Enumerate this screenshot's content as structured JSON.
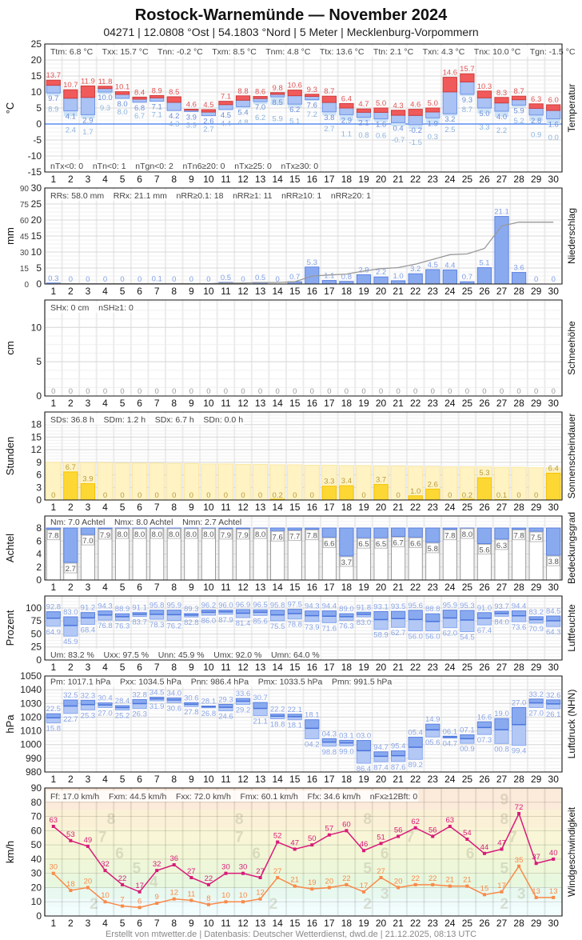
{
  "header": {
    "title": "Rostock-Warnemünde  —  November 2024",
    "subtitle": "04271  |  12.0808 °Ost  |  54.1803 °Nord  |  5 Meter  |  Mecklenburg-Vorpommern"
  },
  "footer": "Erstellt von mtwetter.de | Datenbasis: Deutscher Wetterdienst, dwd.de | 21.12.2025, 08:13 UTC",
  "days": [
    1,
    2,
    3,
    4,
    5,
    6,
    7,
    8,
    9,
    10,
    11,
    12,
    13,
    14,
    15,
    16,
    17,
    18,
    19,
    20,
    21,
    22,
    23,
    24,
    25,
    26,
    27,
    28,
    29,
    30
  ],
  "colors": {
    "tx": "#f05a5a",
    "tn": "#8aaaf0",
    "tg": "#cfe3f7",
    "bar": "#8aaaf0",
    "bar_border": "#5b82e0",
    "sun": "#fdd835",
    "sun_bg": "#fff3c4",
    "gust": "#d81b7a",
    "mean_wind": "#f98a4a"
  },
  "chart_data": [
    {
      "id": "temperature",
      "type": "bar",
      "title": "Temperatur",
      "ylabel": "°C",
      "ylim": [
        -15,
        25
      ],
      "yticks": [
        25,
        20,
        15,
        10,
        5,
        0,
        -5,
        -10,
        -15
      ],
      "stats": [
        "Ttm: 6.8 °C",
        "Txx: 15.7 °C",
        "Tnn: -0.2 °C",
        "Txm: 8.5 °C",
        "Tnm: 4.8 °C",
        "Ttx: 13.6 °C",
        "Ttn: 2.1 °C",
        "Txn: 4.3 °C",
        "Tnx: 10.0 °C",
        "Tgn: -1.5 °C"
      ],
      "stats_bottom": [
        "nTx<0: 0",
        "nTn<0: 1",
        "nTgn<0: 2",
        "nTn6≥20: 0",
        "nTx≥25: 0",
        "nTx≥30: 0"
      ],
      "series": [
        {
          "name": "Tx",
          "values": [
            13.7,
            10.7,
            11.9,
            11.8,
            10.1,
            8.4,
            8.9,
            8.5,
            4.6,
            4.5,
            7.1,
            8.8,
            8.6,
            9.8,
            10.6,
            9.3,
            8.7,
            6.4,
            4.7,
            5.0,
            4.3,
            4.6,
            5.0,
            14.6,
            15.7,
            10.3,
            8.3,
            8.7,
            6.3,
            6.0
          ]
        },
        {
          "name": "Tn",
          "values": [
            9.7,
            4.1,
            2.9,
            10.0,
            8.0,
            6.8,
            7.1,
            4.2,
            3.9,
            2.6,
            4.5,
            5.4,
            7.0,
            8.5,
            6.2,
            7.6,
            3.8,
            2.9,
            2.1,
            1.6,
            0.4,
            -0.2,
            1.9,
            3.2,
            9.3,
            5.0,
            4.0,
            5.9,
            2.8,
            1.6
          ]
        },
        {
          "name": "Tg",
          "values": [
            8.9,
            2.4,
            1.7,
            9.3,
            8.0,
            6.7,
            7.1,
            4.3,
            3.9,
            2.7,
            4.4,
            4.8,
            6.2,
            5.9,
            5.1,
            7.2,
            2.7,
            1.1,
            0.8,
            0.6,
            -0.7,
            -1.5,
            0.3,
            2.5,
            8.7,
            3.3,
            2.2,
            5.2,
            0.9,
            0.0
          ]
        }
      ]
    },
    {
      "id": "precipitation",
      "type": "bar",
      "title": "Niederschlag",
      "ylabel": "mm",
      "ylim": [
        0,
        30
      ],
      "yticks": [
        30,
        25,
        20,
        15,
        10,
        5,
        0
      ],
      "yticks_sum": [
        90,
        75,
        60,
        45,
        30,
        15,
        0
      ],
      "stats": [
        "RRs: 58.0 mm",
        "RRx: 21.1 mm",
        "nRR≥0.1: 18",
        "nRR≥1: 11",
        "nRR≥10: 1",
        "nRR≥20: 1"
      ],
      "values": [
        0.3,
        0,
        0,
        0,
        0,
        0,
        0.1,
        0,
        0,
        0,
        0.5,
        0,
        0.5,
        0,
        0.7,
        5.3,
        1.1,
        0.8,
        2.9,
        2.2,
        1.0,
        3.2,
        4.5,
        4.4,
        0.7,
        5.1,
        21.1,
        3.6,
        0,
        0
      ],
      "labels": [
        "0.3",
        "0",
        "0",
        "0",
        "0",
        "0",
        "0.1",
        "0",
        "0",
        "0",
        "0.5",
        "0",
        "0.5",
        "0",
        "0.7",
        "5.3",
        "1.1",
        "0.8",
        "2.9",
        "2.2",
        "1.0",
        "3.2",
        "4.5",
        "4.4",
        "0.7",
        "5.1",
        "21.1",
        "3.6",
        "0",
        "0"
      ]
    },
    {
      "id": "snow",
      "type": "bar",
      "title": "Schneehöhe",
      "ylabel": "cm",
      "ylim": [
        0,
        14
      ],
      "yticks": [
        10,
        5,
        0
      ],
      "stats": [
        "SHx: 0 cm",
        "nSH≥1: 0"
      ],
      "values": [
        0,
        0,
        0,
        0,
        0,
        0,
        0,
        0,
        0,
        0,
        0,
        0,
        0,
        0,
        0,
        0,
        0,
        0,
        0,
        0,
        0,
        0,
        0,
        0,
        0,
        0,
        0,
        0,
        0,
        0
      ],
      "labels": [
        "0",
        "0",
        "0",
        "0",
        "0",
        "0",
        "0",
        "0",
        "0",
        "0",
        "0",
        "0",
        "0",
        "0",
        "0",
        "0",
        "0",
        "0",
        "0",
        "0",
        "0",
        "0",
        "0",
        "0",
        "0",
        "0",
        "0",
        "0",
        "0",
        "0"
      ]
    },
    {
      "id": "sunshine",
      "type": "bar",
      "title": "Sonnenscheindauer",
      "ylabel": "Stunden",
      "ylim": [
        0,
        21
      ],
      "yticks": [
        18,
        15,
        12,
        9,
        6,
        3,
        0
      ],
      "stats": [
        "SDs: 36.8 h",
        "SDm: 1.2 h",
        "SDx: 6.7 h",
        "SDn: 0.0 h"
      ],
      "values": [
        0,
        6.7,
        3.9,
        0,
        0,
        0,
        0,
        0,
        0,
        0,
        0,
        0,
        0,
        0.2,
        0,
        0,
        3.3,
        3.4,
        0,
        3.7,
        0,
        1.0,
        2.6,
        0,
        0.2,
        5.3,
        0.1,
        0,
        0,
        6.4
      ],
      "labels": [
        "0",
        "6.7",
        "3.9",
        "0",
        "0",
        "0",
        "0",
        "0",
        "0",
        "0",
        "0",
        "0",
        "0",
        "0.2",
        "0",
        "0",
        "3.3",
        "3.4",
        "0",
        "3.7",
        "0",
        "1.0",
        "2.6",
        "0",
        "0.2",
        "5.3",
        "0.1",
        "0",
        "0",
        "6.4"
      ],
      "possible": [
        9.0,
        8.9,
        8.9,
        8.9,
        8.8,
        8.8,
        8.8,
        8.7,
        8.7,
        8.6,
        8.6,
        8.5,
        8.5,
        8.4,
        8.4,
        8.3,
        8.3,
        8.2,
        8.2,
        8.1,
        8.1,
        8.0,
        8.0,
        7.9,
        7.9,
        7.9,
        7.8,
        7.8,
        7.7,
        7.7
      ]
    },
    {
      "id": "cloud",
      "type": "bar",
      "title": "Bedeckungsgrad",
      "ylabel": "Achtel",
      "ylim": [
        0,
        9.85
      ],
      "yticks": [
        8,
        6,
        4,
        2,
        0
      ],
      "stats": [
        "Nm: 7.0 Achtel",
        "Nmx: 8.0 Achtel",
        "Nmn: 2.7 Achtel"
      ],
      "values": [
        7.8,
        2.7,
        7.0,
        7.9,
        8.0,
        8.0,
        8.0,
        8.0,
        8.0,
        8.0,
        7.9,
        7.9,
        8.0,
        7.6,
        7.7,
        7.8,
        6.6,
        3.7,
        6.5,
        6.5,
        6.7,
        6.6,
        5.8,
        7.8,
        8.0,
        5.6,
        6.3,
        7.8,
        7.5,
        3.8
      ],
      "labels": [
        "7.8",
        "2.7",
        "7.0",
        "7.9",
        "8.0",
        "8.0",
        "8.0",
        "8.0",
        "8.0",
        "8.0",
        "7.9",
        "7.9",
        "8.0",
        "7.6",
        "7.7",
        "7.8",
        "6.6",
        "3.7",
        "6.5",
        "6.5",
        "6.7",
        "6.6",
        "5.8",
        "7.8",
        "8.0",
        "5.6",
        "6.3",
        "7.8",
        "7.5",
        "3.8"
      ]
    },
    {
      "id": "humidity",
      "type": "bar",
      "title": "Luftfeuchte",
      "ylabel": "Prozent",
      "ylim": [
        0,
        123
      ],
      "yticks": [
        100,
        75,
        50,
        25,
        0
      ],
      "stats": [
        "Um: 83.2 %",
        "Uxx: 97.5 %",
        "Unn: 45.9 %",
        "Umx: 92.0 %",
        "Umn: 64.0 %"
      ],
      "series": [
        {
          "name": "max",
          "values": [
            92.8,
            83.0,
            91.2,
            94.3,
            88.9,
            91.1,
            95.8,
            95.9,
            89.3,
            96.2,
            96.0,
            96.9,
            96.5,
            95.8,
            97.5,
            94.3,
            94.4,
            89.0,
            91.8,
            93.1,
            93.5,
            95.6,
            88.8,
            95.9,
            95.3,
            91.0,
            93.7,
            94.4,
            83.2,
            84.5
          ]
        },
        {
          "name": "min",
          "values": [
            64.9,
            45.9,
            68.4,
            76.8,
            76.3,
            83.7,
            78.3,
            76.2,
            82.8,
            86.0,
            87.9,
            81.4,
            85.6,
            75.5,
            78.8,
            73.9,
            71.6,
            76.3,
            83.0,
            58.9,
            62.7,
            56.0,
            56.0,
            62.0,
            54.5,
            67.4,
            84.0,
            73.6,
            70.9,
            64.3
          ]
        }
      ]
    },
    {
      "id": "pressure",
      "type": "bar",
      "title": "Luftdruck (NHN)",
      "ylabel": "hPa",
      "ylim": [
        980,
        1050
      ],
      "yticks": [
        1050,
        1040,
        1030,
        1020,
        1010,
        1000,
        990,
        980
      ],
      "stats": [
        "Pm: 1017.1 hPa",
        "Pxx: 1034.5 hPa",
        "Pnn: 986.4 hPa",
        "Pmx: 1033.5 hPa",
        "Pmn: 991.5 hPa"
      ],
      "series": [
        {
          "name": "max",
          "values": [
            1022.5,
            1032.5,
            1032.3,
            1030.4,
            1028.4,
            1032.8,
            1034.5,
            1034.0,
            1030.6,
            1028.1,
            1029.3,
            1033.6,
            1030.7,
            1022.2,
            1022.1,
            1018.1,
            1004.3,
            1003.1,
            1003.0,
            994.7,
            995.4,
            1005.4,
            1014.9,
            1006.1,
            1007.1,
            1016.6,
            1019.0,
            1027.0,
            1033.2,
            1032.6
          ],
          "labels": [
            "22.5",
            "32.5",
            "32.3",
            "30.4",
            "28.4",
            "32.8",
            "34.5",
            "34.0",
            "30.6",
            "28.1",
            "29.3",
            "33.6",
            "30.7",
            "22.2",
            "22.1",
            "18.1",
            "04.3",
            "03.1",
            "03.0",
            "94.7",
            "95.4",
            "05.4",
            "14.9",
            "06.1",
            "07.1",
            "16.6",
            "19.0",
            "27.0",
            "33.2",
            "32.6"
          ]
        },
        {
          "name": "min",
          "values": [
            1015.8,
            1022.7,
            1025.3,
            1027.0,
            1025.2,
            1026.3,
            1031.9,
            1030.6,
            1027.8,
            1026.8,
            1024.6,
            1029.2,
            1021.1,
            1018.8,
            1018.1,
            1004.2,
            998.8,
            999.0,
            986.4,
            987.4,
            987.6,
            989.2,
            1005.6,
            1004.7,
            1000.9,
            1007.3,
            1000.8,
            999.4,
            1027.0,
            1026.1
          ],
          "labels": [
            "15.8",
            "22.7",
            "25.3",
            "27.0",
            "25.2",
            "26.3",
            "31.9",
            "30.6",
            "27.8",
            "26.8",
            "24.6",
            "29.2",
            "21.1",
            "18.8",
            "18.1",
            "04.2",
            "98.8",
            "99.0",
            "86.4",
            "87.4",
            "87.6",
            "89.2",
            "05.6",
            "04.7",
            "00.9",
            "07.3",
            "00.8",
            "99.4",
            "27.0",
            "26.1"
          ]
        }
      ]
    },
    {
      "id": "wind",
      "type": "line",
      "title": "Windgeschwindigkeit",
      "ylabel": "km/h",
      "ylim": [
        0,
        90
      ],
      "yticks": [
        90,
        80,
        70,
        60,
        50,
        40,
        30,
        20,
        10,
        0
      ],
      "stats": [
        "Ff: 17.0 km/h",
        "Fxm: 44.5 km/h",
        "Fxx: 72.0 km/h",
        "Fmx: 60.1 km/h",
        "Ffx: 34.6 km/h",
        "nFx≥12Bft: 0"
      ],
      "beaufort": [
        {
          "bft": "2",
          "from": 6,
          "to": 12
        },
        {
          "bft": "3",
          "from": 12,
          "to": 20
        },
        {
          "bft": "4",
          "from": 20,
          "to": 29
        },
        {
          "bft": "5",
          "from": 29,
          "to": 39
        },
        {
          "bft": "6",
          "from": 39,
          "to": 50
        },
        {
          "bft": "7",
          "from": 50,
          "to": 62
        },
        {
          "bft": "8",
          "from": 62,
          "to": 75
        },
        {
          "bft": "9",
          "from": 75,
          "to": 90
        }
      ],
      "series": [
        {
          "name": "Fx",
          "values": [
            63,
            53,
            49,
            32,
            22,
            17,
            32,
            36,
            27,
            22,
            30,
            30,
            27,
            52,
            47,
            50,
            57,
            60,
            46,
            51,
            56,
            62,
            56,
            63,
            54,
            44,
            47,
            72,
            37,
            40
          ]
        },
        {
          "name": "Fm",
          "values": [
            30,
            18,
            20,
            10,
            7,
            6,
            9,
            12,
            11,
            8,
            10,
            10,
            12,
            27,
            21,
            19,
            20,
            22,
            17,
            27,
            20,
            22,
            22,
            21,
            21,
            15,
            17,
            35,
            13,
            13
          ]
        }
      ]
    }
  ]
}
